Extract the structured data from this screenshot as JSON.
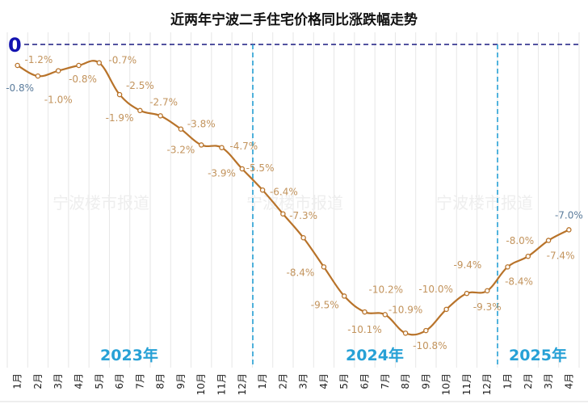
{
  "chart_data": {
    "type": "line",
    "title": "近两年宁波二手住宅价格同比涨跌幅走势",
    "watermark": "宁波楼市报道",
    "y_tick_label": "0",
    "ylim": [
      -12.2,
      0.45
    ],
    "grid": "vertical",
    "years": [
      "2023年",
      "2024年",
      "2025年"
    ],
    "categories": [
      "1月",
      "2月",
      "3月",
      "4月",
      "5月",
      "6月",
      "7月",
      "8月",
      "9月",
      "10月",
      "11月",
      "12月",
      "1月",
      "2月",
      "3月",
      "4月",
      "5月",
      "6月",
      "7月",
      "8月",
      "9月",
      "10月",
      "11月",
      "12月",
      "1月",
      "2月",
      "3月",
      "4月"
    ],
    "values": [
      -0.8,
      -1.2,
      -1.0,
      -0.8,
      -0.7,
      -1.9,
      -2.5,
      -2.7,
      -3.2,
      -3.8,
      -3.9,
      -4.7,
      -5.5,
      -6.4,
      -7.3,
      -8.4,
      -9.5,
      -10.1,
      -10.2,
      -10.9,
      -10.8,
      -10.0,
      -9.4,
      -9.3,
      -8.4,
      -8.0,
      -7.4,
      -7.0
    ],
    "data_labels": [
      "-0.8%",
      "-1.2%",
      "-1.0%",
      "-0.8%",
      "-0.7%",
      "-1.9%",
      "-2.5%",
      "-2.7%",
      "-3.2%",
      "-3.8%",
      "-3.9%",
      "-4.7%",
      "-5.5%",
      "-6.4%",
      "-7.3%",
      "-8.4%",
      "-9.5%",
      "-10.1%",
      "-10.2%",
      "-10.9%",
      "-10.8%",
      "-10.0%",
      "-9.4%",
      "-9.3%",
      "-8.4%",
      "-8.0%",
      "-7.4%",
      "-7.0%"
    ],
    "colors": {
      "line": "#b8732a",
      "labels": "#c2935c",
      "edge_labels": "#5b7c9c",
      "year_divider": "#27a1d6",
      "zero_line": "#1a1a80"
    }
  }
}
